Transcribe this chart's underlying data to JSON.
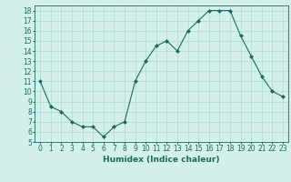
{
  "x": [
    0,
    1,
    2,
    3,
    4,
    5,
    6,
    7,
    8,
    9,
    10,
    11,
    12,
    13,
    14,
    15,
    16,
    17,
    18,
    19,
    20,
    21,
    22,
    23
  ],
  "y": [
    11,
    8.5,
    8,
    7,
    6.5,
    6.5,
    5.5,
    6.5,
    7,
    11,
    13,
    14.5,
    15,
    14,
    16,
    17,
    18,
    18,
    18,
    15.5,
    13.5,
    11.5,
    10,
    9.5
  ],
  "line_color": "#1a6b5e",
  "marker": "D",
  "marker_size": 2,
  "bg_color": "#d4f0eb",
  "grid_color": "#aed8d0",
  "xlabel": "Humidex (Indice chaleur)",
  "ylim": [
    5,
    18.5
  ],
  "xlim": [
    -0.5,
    23.5
  ],
  "yticks": [
    5,
    6,
    7,
    8,
    9,
    10,
    11,
    12,
    13,
    14,
    15,
    16,
    17,
    18
  ],
  "xticks": [
    0,
    1,
    2,
    3,
    4,
    5,
    6,
    7,
    8,
    9,
    10,
    11,
    12,
    13,
    14,
    15,
    16,
    17,
    18,
    19,
    20,
    21,
    22,
    23
  ],
  "tick_color": "#1a6b5e",
  "label_color": "#1a6b5e",
  "tick_fontsize": 5.5,
  "xlabel_fontsize": 6.5
}
